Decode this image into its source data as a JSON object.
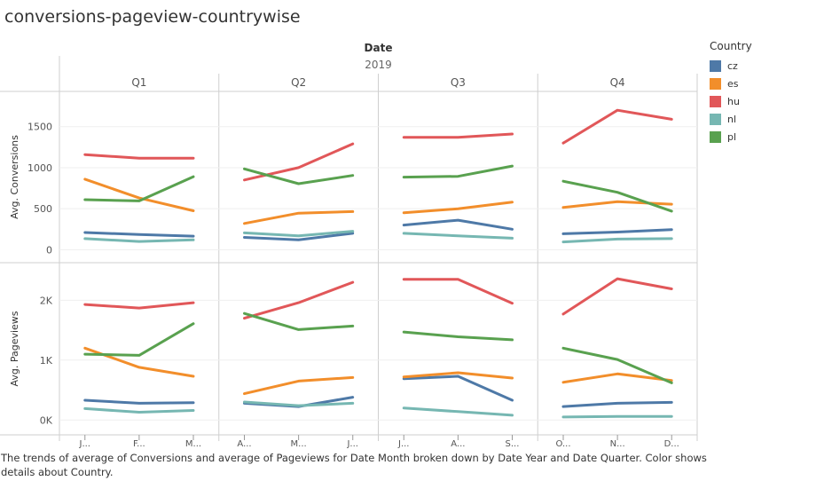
{
  "title": "conversions-pageview-countrywise",
  "caption": "The trends of average of Conversions and average of Pageviews for Date Month broken down by Date Year and Date Quarter.  Color shows details about Country.",
  "legend": {
    "title": "Country",
    "items": [
      {
        "label": "cz",
        "color": "#4e79a7"
      },
      {
        "label": "es",
        "color": "#f28e2b"
      },
      {
        "label": "hu",
        "color": "#e15759"
      },
      {
        "label": "nl",
        "color": "#76b7b2"
      },
      {
        "label": "pl",
        "color": "#59a14f"
      }
    ]
  },
  "chart_data": {
    "type": "line",
    "column_header": "Date",
    "year": "2019",
    "quarters": [
      "Q1",
      "Q2",
      "Q3",
      "Q4"
    ],
    "month_ticks": [
      "J...",
      "F...",
      "M...",
      "A...",
      "M...",
      "J...",
      "J...",
      "A...",
      "S...",
      "O...",
      "N...",
      "D..."
    ],
    "panels": [
      {
        "ylabel": "Avg. Conversions",
        "ylim": [
          -50,
          1800
        ],
        "yticks": [
          {
            "value": 0,
            "label": "0"
          },
          {
            "value": 500,
            "label": "500"
          },
          {
            "value": 1000,
            "label": "1000"
          },
          {
            "value": 1500,
            "label": "1500"
          }
        ],
        "series": [
          {
            "name": "cz",
            "values": [
              210,
              185,
              165,
              150,
              120,
              200,
              300,
              360,
              250,
              195,
              215,
              245
            ]
          },
          {
            "name": "es",
            "values": [
              860,
              630,
              475,
              320,
              445,
              465,
              450,
              500,
              580,
              515,
              585,
              555
            ]
          },
          {
            "name": "hu",
            "values": [
              1160,
              1115,
              1115,
              850,
              1000,
              1290,
              1370,
              1370,
              1410,
              1300,
              1700,
              1590
            ]
          },
          {
            "name": "nl",
            "values": [
              135,
              100,
              120,
              205,
              170,
              225,
              200,
              170,
              140,
              95,
              130,
              135
            ]
          },
          {
            "name": "pl",
            "values": [
              610,
              595,
              890,
              985,
              805,
              905,
              885,
              895,
              1020,
              835,
              700,
              470
            ]
          }
        ]
      },
      {
        "ylabel": "Avg. Pageviews",
        "ylim": [
          -100,
          2450
        ],
        "yticks": [
          {
            "value": 0,
            "label": "0K"
          },
          {
            "value": 1000,
            "label": "1K"
          },
          {
            "value": 2000,
            "label": "2K"
          }
        ],
        "series": [
          {
            "name": "cz",
            "values": [
              330,
              280,
              290,
              280,
              225,
              380,
              690,
              730,
              330,
              225,
              280,
              295
            ]
          },
          {
            "name": "es",
            "values": [
              1200,
              880,
              730,
              440,
              650,
              710,
              720,
              790,
              700,
              630,
              770,
              660
            ]
          },
          {
            "name": "hu",
            "values": [
              1930,
              1870,
              1960,
              1700,
              1960,
              2300,
              2350,
              2350,
              1950,
              1770,
              2360,
              2190
            ]
          },
          {
            "name": "nl",
            "values": [
              190,
              130,
              160,
              300,
              240,
              280,
              200,
              140,
              80,
              50,
              60,
              60
            ]
          },
          {
            "name": "pl",
            "values": [
              1100,
              1080,
              1610,
              1780,
              1510,
              1570,
              1470,
              1390,
              1340,
              1200,
              1010,
              620
            ]
          }
        ]
      }
    ]
  }
}
